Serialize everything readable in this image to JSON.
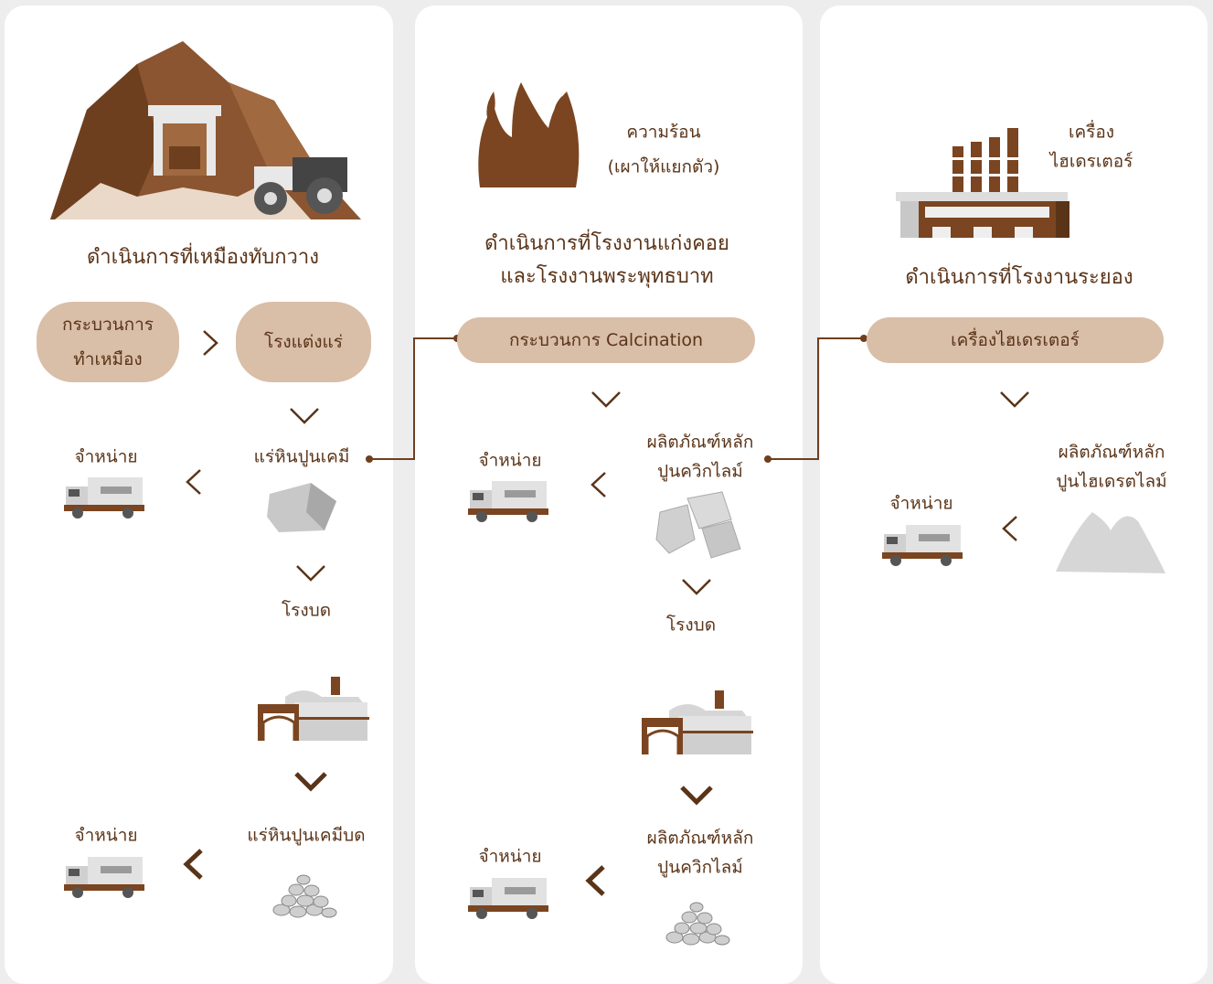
{
  "panels": [
    {
      "title": "ดำเนินการที่เหมืองทับกวาง",
      "process_1": [
        "กระบวนการ",
        "ทำเหมือง"
      ],
      "process_2": "โรงแต่งแร่",
      "product_1": "แร่หินปูนเคมี",
      "sell_1": "จำหน่าย",
      "crush": "โรงบด",
      "product_2": "แร่หินปูนเคมีบด",
      "sell_2": "จำหน่าย"
    },
    {
      "heat_label": [
        "ความร้อน",
        "(เผาให้แยกตัว)"
      ],
      "title": [
        "ดำเนินการที่โรงงานแก่งคอย",
        "และโรงงานพระพุทธบาท"
      ],
      "process": "กระบวนการ Calcination",
      "product_1": [
        "ผลิตภัณฑ์หลัก",
        "ปูนควิกไลม์"
      ],
      "sell_1": "จำหน่าย",
      "crush": "โรงบด",
      "product_2": [
        "ผลิตภัณฑ์หลัก",
        "ปูนควิกไลม์"
      ],
      "sell_2": "จำหน่าย"
    },
    {
      "machine_label": [
        "เครื่อง",
        "ไฮเดรเตอร์"
      ],
      "title": "ดำเนินการที่โรงงานระยอง",
      "process": "เครื่องไฮเดรเตอร์",
      "product": [
        "ผลิตภัณฑ์หลัก",
        "ปูนไฮเดรตไลม์"
      ],
      "sell": "จำหน่าย"
    }
  ]
}
